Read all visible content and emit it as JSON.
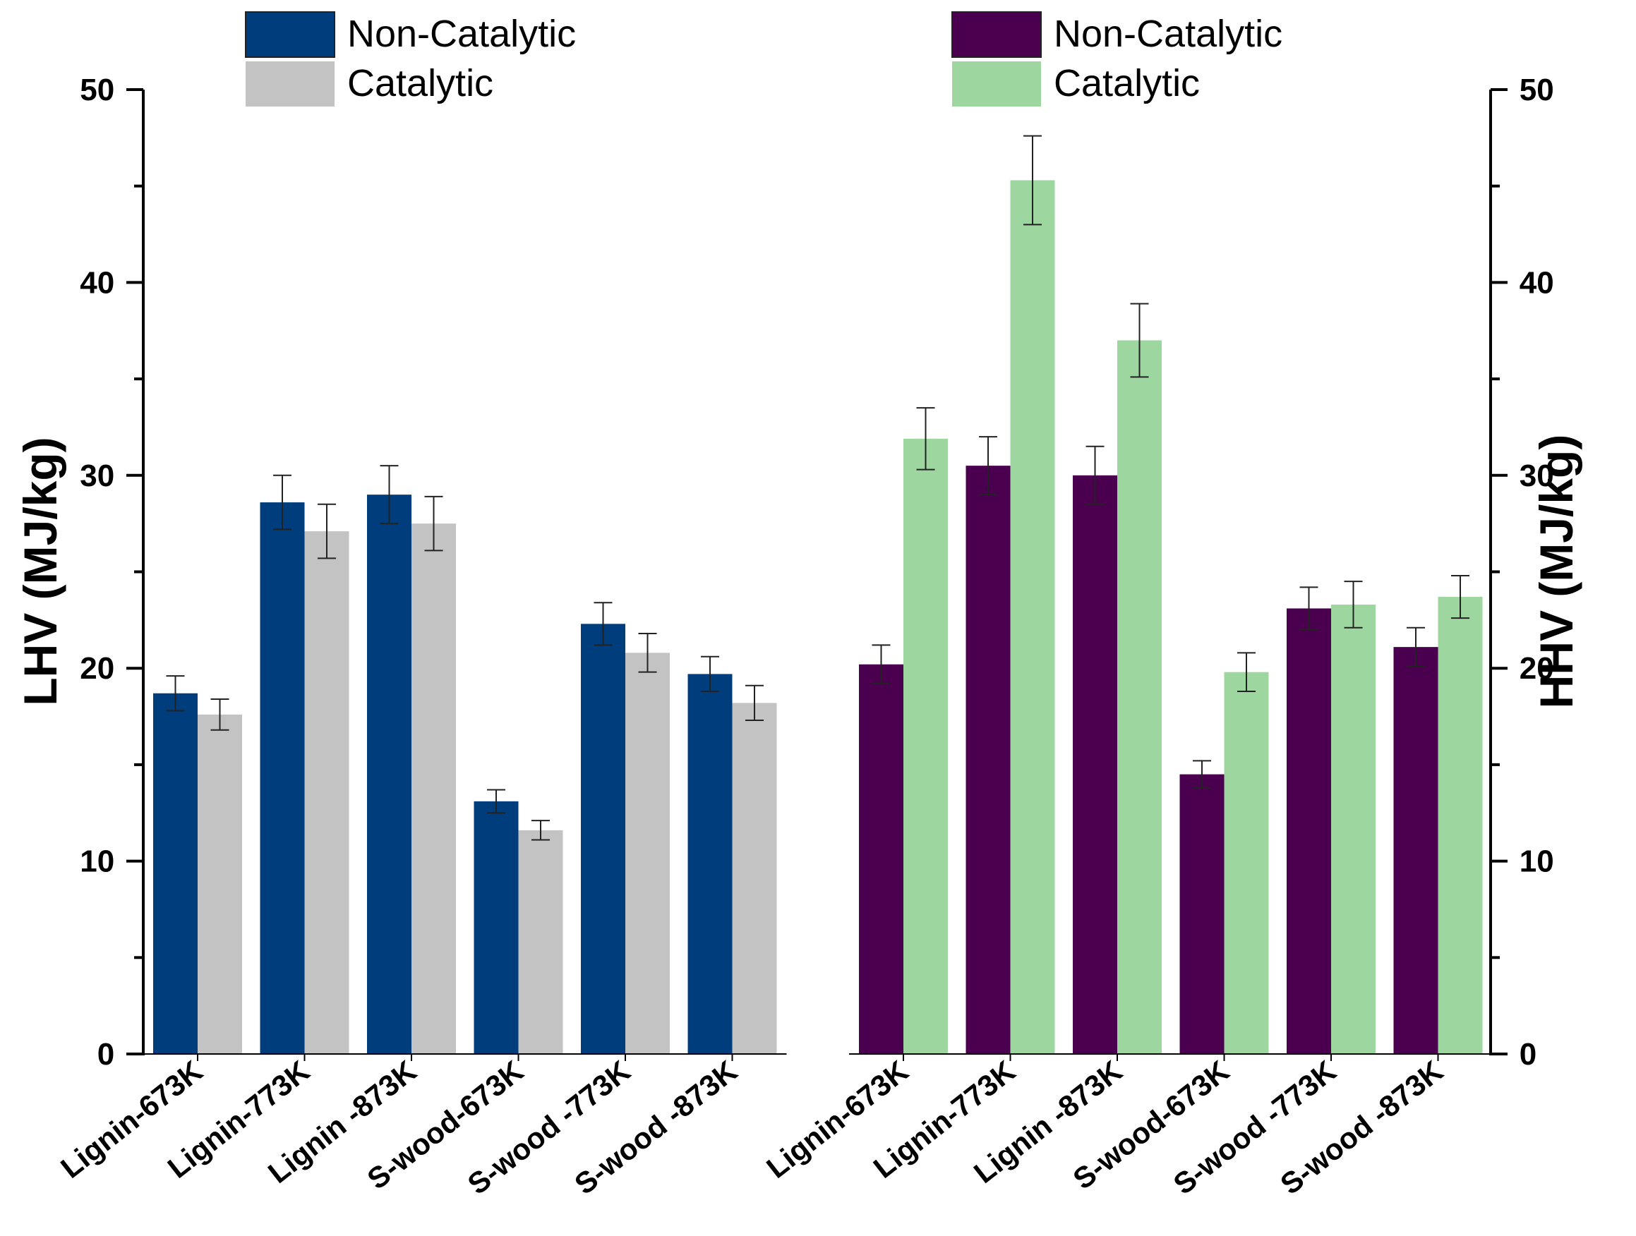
{
  "chart_data": [
    {
      "type": "bar",
      "panel": "left",
      "categories": [
        "Lignin-673K",
        "Lignin-773K",
        "Lignin -873K",
        "S-wood-673K",
        "S-wood -773K",
        "S-wood -873K"
      ],
      "series": [
        {
          "name": "Non-Catalytic",
          "color": "#003d7c",
          "values": [
            18.7,
            28.6,
            29.0,
            13.1,
            22.3,
            19.7
          ],
          "errors": [
            0.9,
            1.4,
            1.5,
            0.6,
            1.1,
            0.9
          ]
        },
        {
          "name": "Catalytic",
          "color": "#c3c3c3",
          "values": [
            17.6,
            27.1,
            27.5,
            11.6,
            20.8,
            18.2
          ],
          "errors": [
            0.8,
            1.4,
            1.4,
            0.5,
            1.0,
            0.9
          ]
        }
      ],
      "ylabel": "LHV (MJ/kg)",
      "ylim": [
        0,
        50
      ],
      "yticks": [
        "0",
        "10",
        "20",
        "30",
        "40",
        "50"
      ],
      "y_axis_side": "left",
      "legend_position": "top-left"
    },
    {
      "type": "bar",
      "panel": "right",
      "categories": [
        "Lignin-673K",
        "Lignin-773K",
        "Lignin -873K",
        "S-wood-673K",
        "S-wood -773K",
        "S-wood -873K"
      ],
      "series": [
        {
          "name": "Non-Catalytic",
          "color": "#4a004f",
          "values": [
            20.2,
            30.5,
            30.0,
            14.5,
            23.1,
            21.1
          ],
          "errors": [
            1.0,
            1.5,
            1.5,
            0.7,
            1.1,
            1.0
          ]
        },
        {
          "name": "Catalytic",
          "color": "#9dd69f",
          "values": [
            31.9,
            45.3,
            37.0,
            19.8,
            23.3,
            23.7
          ],
          "errors": [
            1.6,
            2.3,
            1.9,
            1.0,
            1.2,
            1.1
          ]
        }
      ],
      "ylabel": "HHV (MJ/kg)",
      "ylim": [
        0,
        50
      ],
      "yticks": [
        "0",
        "10",
        "20",
        "30",
        "40",
        "50"
      ],
      "y_axis_side": "right",
      "legend_position": "top-right"
    }
  ]
}
